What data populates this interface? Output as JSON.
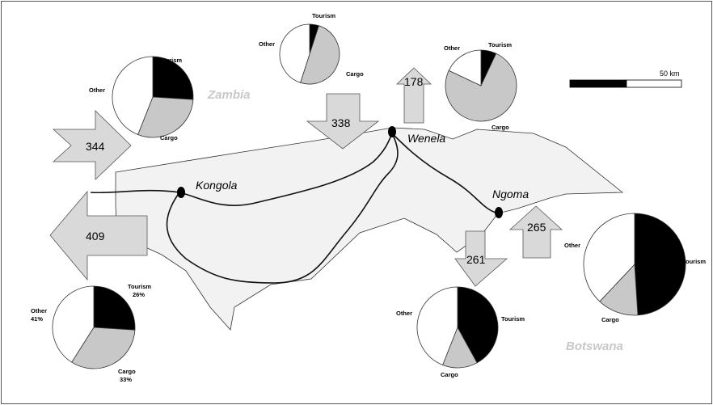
{
  "colors": {
    "tourism": "#000000",
    "cargo": "#c8c8c8",
    "other": "#ffffff",
    "land": "#f2f2f2",
    "arrow": "#d9d9d9"
  },
  "countries": {
    "zambia": "Zambia",
    "botswana": "Botswana"
  },
  "towns": {
    "kongola": "Kongola",
    "wenela": "Wenela",
    "ngoma": "Ngoma"
  },
  "flows": {
    "a344": "344",
    "a409": "409",
    "a338": "338",
    "a178": "178",
    "a261": "261",
    "a265": "265"
  },
  "scale": {
    "label": "50 km"
  },
  "pies": {
    "p1": {
      "slices": [
        {
          "key": "tourism",
          "label": "Tourism",
          "value": 26
        },
        {
          "key": "cargo",
          "label": "Cargo",
          "value": 30
        },
        {
          "key": "other",
          "label": "Other",
          "value": 44
        }
      ]
    },
    "p2": {
      "slices": [
        {
          "key": "tourism",
          "label": "Tourism",
          "value": 5
        },
        {
          "key": "cargo",
          "label": "Cargo",
          "value": 50
        },
        {
          "key": "other",
          "label": "Other",
          "value": 45
        }
      ]
    },
    "p3": {
      "slices": [
        {
          "key": "tourism",
          "label": "Tourism",
          "value": 7
        },
        {
          "key": "cargo",
          "label": "Cargo",
          "value": 75
        },
        {
          "key": "other",
          "label": "Other",
          "value": 18
        }
      ]
    },
    "p4": {
      "slices": [
        {
          "key": "tourism",
          "label": "Tourism",
          "value": 26
        },
        {
          "key": "cargo",
          "label": "Cargo",
          "value": 33
        },
        {
          "key": "other",
          "label": "Other",
          "value": 41
        }
      ],
      "tourism_pct": "26%",
      "cargo_pct": "33%",
      "other_pct": "41%"
    },
    "p5": {
      "slices": [
        {
          "key": "tourism",
          "label": "Tourism",
          "value": 42
        },
        {
          "key": "cargo",
          "label": "Cargo",
          "value": 14
        },
        {
          "key": "other",
          "label": "Other",
          "value": 44
        }
      ]
    },
    "p6": {
      "slices": [
        {
          "key": "tourism",
          "label": "Tourism",
          "value": 49
        },
        {
          "key": "cargo",
          "label": "Cargo",
          "value": 13
        },
        {
          "key": "other",
          "label": "Other",
          "value": 38
        }
      ]
    }
  }
}
